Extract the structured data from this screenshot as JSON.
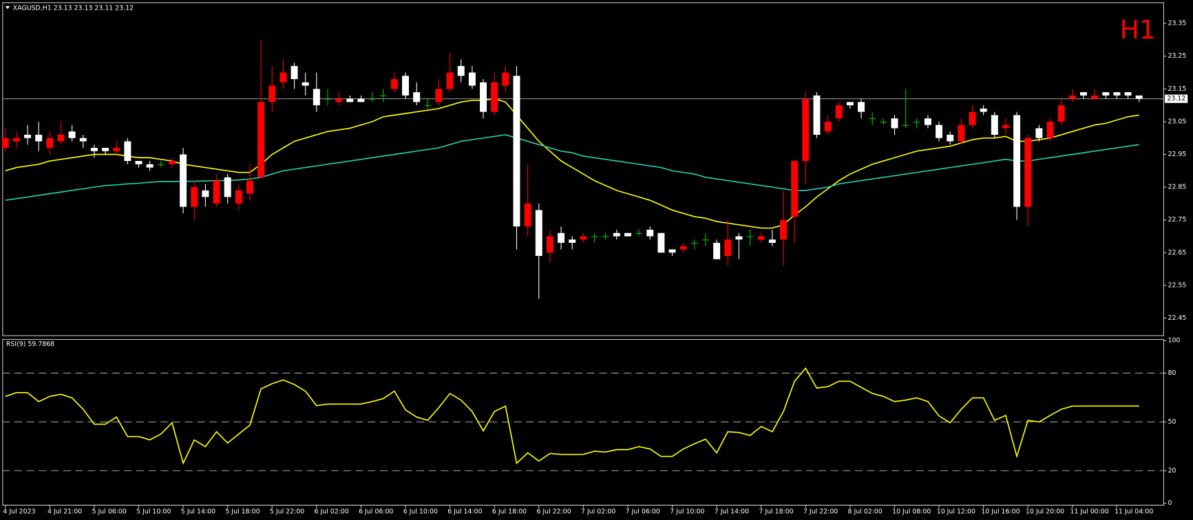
{
  "chart_data": [
    {
      "type": "candlestick",
      "title": "XAGUSD,H1  23.13 23.13 23.11 23.12",
      "watermark": "H1",
      "categories": [
        "4 Jul 2023",
        null,
        null,
        null,
        "4 Jul 21:00",
        null,
        null,
        null,
        "5 Jul 06:00",
        null,
        null,
        null,
        "5 Jul 10:00",
        null,
        null,
        null,
        "5 Jul 14:00",
        null,
        null,
        null,
        "5 Jul 18:00",
        null,
        null,
        null,
        "5 Jul 22:00",
        null,
        null,
        null,
        "6 Jul 02:00",
        null,
        null,
        null,
        "6 Jul 06:00",
        null,
        null,
        null,
        "6 Jul 10:00",
        null,
        null,
        null,
        "6 Jul 14:00",
        null,
        null,
        null,
        "6 Jul 18:00",
        null,
        null,
        null,
        "6 Jul 22:00",
        null,
        null,
        null,
        "7 Jul 02:00",
        null,
        null,
        null,
        "7 Jul 06:00",
        null,
        null,
        null,
        "7 Jul 10:00",
        null,
        null,
        null,
        "7 Jul 14:00",
        null,
        null,
        null,
        "7 Jul 18:00",
        null,
        null,
        null,
        "7 Jul 22:00",
        null,
        null,
        null,
        "8 Jul 02:00",
        null,
        null,
        null,
        "10 Jul 08:00",
        null,
        null,
        null,
        "10 Jul 12:00",
        null,
        null,
        null,
        "10 Jul 16:00",
        null,
        null,
        null,
        "10 Jul 20:00",
        null,
        null,
        null,
        "11 Jul 00:00",
        null,
        null,
        null,
        "11 Jul 04:00",
        null,
        null
      ],
      "open": [
        22.97,
        22.99,
        23.01,
        23.01,
        22.97,
        22.99,
        23.02,
        23.0,
        22.97,
        22.97,
        22.96,
        22.99,
        22.93,
        22.92,
        22.92,
        22.92,
        22.95,
        22.79,
        22.84,
        22.8,
        22.88,
        22.8,
        22.83,
        22.88,
        23.11,
        23.17,
        23.22,
        23.17,
        23.15,
        23.12,
        23.11,
        23.12,
        23.12,
        23.12,
        23.13,
        23.15,
        23.19,
        23.14,
        23.1,
        23.11,
        23.15,
        23.22,
        23.2,
        23.17,
        23.08,
        23.16,
        23.19,
        22.73,
        22.78,
        22.65,
        22.71,
        22.69,
        22.69,
        22.7,
        22.7,
        22.71,
        22.71,
        22.71,
        22.72,
        22.71,
        22.66,
        22.66,
        22.68,
        22.69,
        22.68,
        22.64,
        22.7,
        22.7,
        22.69,
        22.69,
        22.69,
        22.76,
        22.93,
        23.13,
        23.02,
        23.06,
        23.11,
        23.11,
        23.06,
        23.05,
        23.06,
        23.04,
        23.05,
        23.06,
        23.04,
        23.01,
        22.99,
        23.04,
        23.09,
        23.07,
        23.03,
        23.07,
        22.79,
        23.03,
        23.0,
        23.05,
        23.12,
        23.14,
        23.12,
        23.14,
        23.14,
        23.14,
        23.13
      ],
      "high": [
        23.03,
        23.02,
        23.04,
        23.05,
        23.02,
        23.05,
        23.04,
        23.01,
        22.98,
        22.97,
        22.99,
        23.0,
        22.93,
        22.93,
        22.93,
        22.94,
        22.97,
        22.87,
        22.86,
        22.89,
        22.89,
        22.86,
        22.92,
        23.3,
        23.22,
        23.24,
        23.23,
        23.2,
        23.2,
        23.15,
        23.14,
        23.13,
        23.13,
        23.14,
        23.15,
        23.2,
        23.2,
        23.17,
        23.12,
        23.18,
        23.26,
        23.24,
        23.22,
        23.18,
        23.2,
        23.22,
        23.22,
        22.92,
        22.8,
        22.72,
        22.73,
        22.7,
        22.71,
        22.71,
        22.71,
        22.72,
        22.71,
        22.72,
        22.73,
        22.71,
        22.66,
        22.68,
        22.69,
        22.71,
        22.69,
        22.75,
        22.71,
        22.72,
        22.71,
        22.72,
        22.84,
        22.93,
        23.14,
        23.14,
        23.07,
        23.11,
        23.11,
        23.12,
        23.08,
        23.06,
        23.07,
        23.15,
        23.06,
        23.07,
        23.05,
        23.02,
        23.06,
        23.1,
        23.1,
        23.08,
        23.06,
        23.08,
        23.01,
        23.04,
        23.06,
        23.12,
        23.15,
        23.14,
        23.15,
        23.14,
        23.14,
        23.14,
        23.13
      ],
      "low": [
        22.96,
        22.97,
        22.98,
        22.96,
        22.95,
        22.98,
        22.99,
        22.97,
        22.94,
        22.95,
        22.95,
        22.92,
        22.91,
        22.9,
        22.91,
        22.91,
        22.77,
        22.75,
        22.79,
        22.79,
        22.8,
        22.78,
        22.81,
        22.88,
        23.08,
        23.15,
        23.15,
        23.13,
        23.08,
        23.1,
        23.1,
        23.11,
        23.11,
        23.11,
        23.11,
        23.14,
        23.12,
        23.1,
        23.09,
        23.1,
        23.14,
        23.17,
        23.15,
        23.06,
        23.07,
        23.14,
        22.66,
        22.7,
        22.51,
        22.62,
        22.66,
        22.66,
        22.68,
        22.68,
        22.69,
        22.69,
        22.7,
        22.7,
        22.69,
        22.65,
        22.64,
        22.65,
        22.66,
        22.67,
        22.63,
        22.61,
        22.63,
        22.67,
        22.68,
        22.67,
        22.61,
        22.68,
        22.86,
        23.0,
        23.01,
        23.05,
        23.09,
        23.06,
        23.04,
        23.04,
        23.01,
        23.03,
        23.03,
        23.03,
        22.99,
        22.98,
        22.98,
        23.03,
        23.07,
        23.0,
        23.01,
        22.75,
        22.73,
        22.99,
        22.99,
        23.04,
        23.11,
        23.12,
        23.12,
        23.12,
        23.12,
        23.12,
        23.11
      ],
      "close": [
        23.0,
        23.0,
        23.0,
        22.99,
        23.0,
        23.01,
        23.0,
        22.99,
        22.96,
        22.96,
        22.97,
        22.93,
        22.92,
        22.91,
        22.92,
        22.93,
        22.79,
        22.85,
        22.82,
        22.87,
        22.82,
        22.84,
        22.87,
        23.11,
        23.16,
        23.2,
        23.18,
        23.16,
        23.1,
        23.12,
        23.12,
        23.11,
        23.11,
        23.12,
        23.13,
        23.18,
        23.13,
        23.11,
        23.1,
        23.15,
        23.2,
        23.19,
        23.16,
        23.08,
        23.17,
        23.2,
        22.73,
        22.8,
        22.64,
        22.7,
        22.68,
        22.68,
        22.7,
        22.7,
        22.7,
        22.7,
        22.7,
        22.71,
        22.7,
        22.65,
        22.65,
        22.67,
        22.68,
        22.69,
        22.63,
        22.69,
        22.69,
        22.7,
        22.7,
        22.68,
        22.75,
        22.93,
        23.12,
        23.01,
        23.05,
        23.1,
        23.1,
        23.08,
        23.06,
        23.05,
        23.03,
        23.04,
        23.05,
        23.04,
        23.0,
        22.99,
        23.04,
        23.08,
        23.08,
        23.01,
        23.04,
        22.79,
        23.0,
        23.0,
        23.05,
        23.1,
        23.13,
        23.13,
        23.13,
        23.13,
        23.13,
        23.13,
        23.12
      ],
      "up_color": "#ff0000",
      "down_color": "#ffffff",
      "doji_color": "#00c800",
      "overlays": [
        {
          "color": "#ffff00",
          "values": [
            22.9,
            22.91,
            22.915,
            22.92,
            22.93,
            22.935,
            22.94,
            22.945,
            22.95,
            22.95,
            22.95,
            22.945,
            22.94,
            22.94,
            22.935,
            22.93,
            22.92,
            22.915,
            22.91,
            22.905,
            22.9,
            22.895,
            22.895,
            22.92,
            22.95,
            22.97,
            22.99,
            23.0,
            23.01,
            23.02,
            23.025,
            23.03,
            23.04,
            23.05,
            23.065,
            23.07,
            23.075,
            23.08,
            23.085,
            23.09,
            23.1,
            23.11,
            23.115,
            23.115,
            23.12,
            23.11,
            23.07,
            23.03,
            22.99,
            22.96,
            22.93,
            22.91,
            22.89,
            22.87,
            22.855,
            22.84,
            22.83,
            22.82,
            22.81,
            22.795,
            22.78,
            22.77,
            22.76,
            22.755,
            22.745,
            22.74,
            22.735,
            22.73,
            22.725,
            22.725,
            22.735,
            22.765,
            22.79,
            22.82,
            22.845,
            22.87,
            22.89,
            22.905,
            22.92,
            22.93,
            22.94,
            22.95,
            22.96,
            22.965,
            22.97,
            22.975,
            22.985,
            22.995,
            23.0,
            23.0,
            23.005,
            22.99,
            22.99,
            22.995,
            23.0,
            23.01,
            23.02,
            23.03,
            23.04,
            23.045,
            23.055,
            23.065,
            23.07
          ]
        },
        {
          "color": "#20d0b0",
          "values": [
            22.81,
            22.815,
            22.82,
            22.825,
            22.83,
            22.835,
            22.84,
            22.845,
            22.85,
            22.855,
            22.857,
            22.86,
            22.862,
            22.865,
            22.867,
            22.867,
            22.868,
            22.868,
            22.869,
            22.87,
            22.87,
            22.872,
            22.875,
            22.88,
            22.89,
            22.9,
            22.905,
            22.91,
            22.915,
            22.92,
            22.925,
            22.93,
            22.935,
            22.94,
            22.945,
            22.95,
            22.955,
            22.96,
            22.965,
            22.97,
            22.98,
            22.99,
            22.995,
            23.0,
            23.005,
            23.01,
            23.0,
            22.99,
            22.98,
            22.97,
            22.96,
            22.955,
            22.945,
            22.94,
            22.935,
            22.93,
            22.925,
            22.92,
            22.915,
            22.91,
            22.9,
            22.895,
            22.89,
            22.88,
            22.875,
            22.87,
            22.865,
            22.86,
            22.855,
            22.85,
            22.845,
            22.84,
            22.84,
            22.845,
            22.85,
            22.86,
            22.865,
            22.87,
            22.875,
            22.88,
            22.885,
            22.89,
            22.895,
            22.9,
            22.905,
            22.91,
            22.915,
            22.92,
            22.925,
            22.93,
            22.935,
            22.93,
            22.93,
            22.935,
            22.94,
            22.945,
            22.95,
            22.955,
            22.96,
            22.965,
            22.97,
            22.975,
            22.98
          ]
        }
      ],
      "current_price": 23.12,
      "ylim": [
        22.4,
        23.41
      ],
      "yticks": [
        23.35,
        23.25,
        23.15,
        23.05,
        22.95,
        22.85,
        22.75,
        22.65,
        22.55,
        22.45
      ]
    },
    {
      "type": "line",
      "title": "RSI(9) 59.7868",
      "color": "#ffff00",
      "values": [
        65.7,
        68,
        68,
        62.5,
        65.7,
        67,
        64.8,
        57.8,
        48.6,
        48.6,
        53,
        41,
        41,
        39,
        42.6,
        49.5,
        24.6,
        38.9,
        34.8,
        44,
        37,
        42.6,
        48,
        70.3,
        73.5,
        75.8,
        73,
        68.9,
        60,
        61,
        61,
        61,
        61,
        62.5,
        64.3,
        68.9,
        57.4,
        53,
        51,
        58.8,
        67.5,
        63.4,
        56.4,
        44.5,
        56.4,
        59.7,
        24.6,
        31,
        26,
        30.6,
        30,
        30,
        30,
        32,
        31.5,
        33,
        33,
        34.8,
        33.4,
        28.8,
        28.8,
        33.4,
        36.6,
        39.4,
        31,
        44,
        43.5,
        41.7,
        47.2,
        44,
        56.4,
        75,
        83,
        70.8,
        71.7,
        75,
        75,
        71.2,
        67.5,
        65.7,
        62.5,
        63.4,
        64.8,
        62.5,
        53.7,
        49.5,
        57.8,
        64.8,
        64.8,
        51,
        54,
        28.8,
        51,
        50,
        54,
        57.8,
        59.7,
        59.7868,
        59.7868,
        59.7868,
        59.7868,
        59.7868,
        59.7868
      ],
      "ylim": [
        0,
        100
      ],
      "yticks": [
        100,
        80,
        50,
        20,
        0
      ],
      "levels": [
        80,
        50,
        20
      ]
    }
  ]
}
